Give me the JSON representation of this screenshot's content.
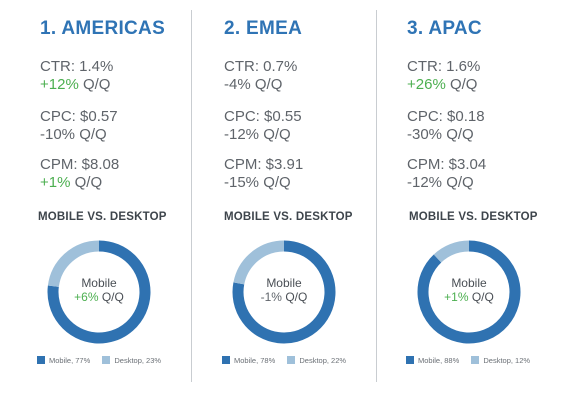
{
  "colors": {
    "title": "#2f74b5",
    "mobile": "#2f72b1",
    "desktop": "#9fc0da",
    "positive": "#4caf50"
  },
  "regions": [
    {
      "title": "1. AMERICAS",
      "ctr": "CTR: 1.4%",
      "ctr_change": "+12%",
      "ctr_change_positive": true,
      "cpc": "CPC: $0.57",
      "cpc_change": "-10%",
      "cpc_change_positive": false,
      "cpm": "CPM: $8.08",
      "cpm_change": "+1%",
      "cpm_change_positive": true,
      "qq": "Q/Q",
      "section_title": "MOBILE VS. DESKTOP",
      "center_label": "Mobile",
      "center_change": "+6%",
      "center_change_positive": true,
      "legend_mobile": "Mobile, 77%",
      "legend_desktop": "Desktop, 23%"
    },
    {
      "title": "2. EMEA",
      "ctr": "CTR: 0.7%",
      "ctr_change": "-4%",
      "ctr_change_positive": false,
      "cpc": "CPC: $0.55",
      "cpc_change": "-12%",
      "cpc_change_positive": false,
      "cpm": "CPM: $3.91",
      "cpm_change": "-15%",
      "cpm_change_positive": false,
      "qq": "Q/Q",
      "section_title": "MOBILE VS. DESKTOP",
      "center_label": "Mobile",
      "center_change": "-1%",
      "center_change_positive": false,
      "legend_mobile": "Mobile, 78%",
      "legend_desktop": "Desktop, 22%"
    },
    {
      "title": "3. APAC",
      "ctr": "CTR: 1.6%",
      "ctr_change": "+26%",
      "ctr_change_positive": true,
      "cpc": "CPC: $0.18",
      "cpc_change": "-30%",
      "cpc_change_positive": false,
      "cpm": "CPM: $3.04",
      "cpm_change": "-12%",
      "cpm_change_positive": false,
      "qq": "Q/Q",
      "section_title": "MOBILE VS. DESKTOP",
      "center_label": "Mobile",
      "center_change": "+1%",
      "center_change_positive": true,
      "legend_mobile": "Mobile, 88%",
      "legend_desktop": "Desktop, 12%"
    }
  ],
  "chart_data": [
    {
      "type": "pie",
      "title": "MOBILE VS. DESKTOP",
      "categories": [
        "Mobile",
        "Desktop"
      ],
      "values": [
        77,
        23
      ]
    },
    {
      "type": "pie",
      "title": "MOBILE VS. DESKTOP",
      "categories": [
        "Mobile",
        "Desktop"
      ],
      "values": [
        78,
        22
      ]
    },
    {
      "type": "pie",
      "title": "MOBILE VS. DESKTOP",
      "categories": [
        "Mobile",
        "Desktop"
      ],
      "values": [
        88,
        12
      ]
    }
  ]
}
